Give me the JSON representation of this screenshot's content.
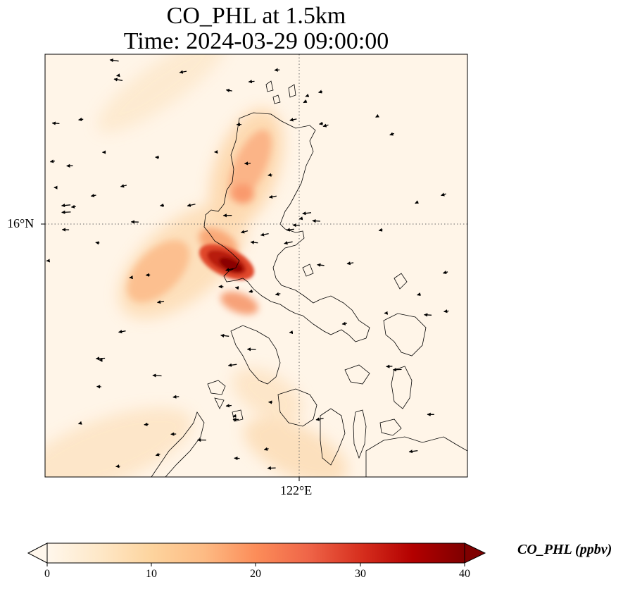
{
  "title": {
    "line1": "CO_PHL at 1.5km",
    "line2": "Time: 2024-03-29 09:00:00"
  },
  "map": {
    "lat_tick_label": "16°N",
    "lon_tick_label": "122°E",
    "gridlines": true,
    "field": "CO_PHL concentration",
    "features": [
      "coastline",
      "wind-vectors",
      "gridlines"
    ]
  },
  "colorbar": {
    "label": "CO_PHL (ppbv)",
    "ticks": [
      "0",
      "10",
      "20",
      "30",
      "40"
    ],
    "range": [
      0,
      40
    ],
    "extend": "both",
    "colormap": "OrRd",
    "colors": [
      "#fff7ec",
      "#fee8c8",
      "#fdd49e",
      "#fdbb84",
      "#fc8d59",
      "#ef6548",
      "#d7301f",
      "#b30000",
      "#7f0000"
    ]
  }
}
